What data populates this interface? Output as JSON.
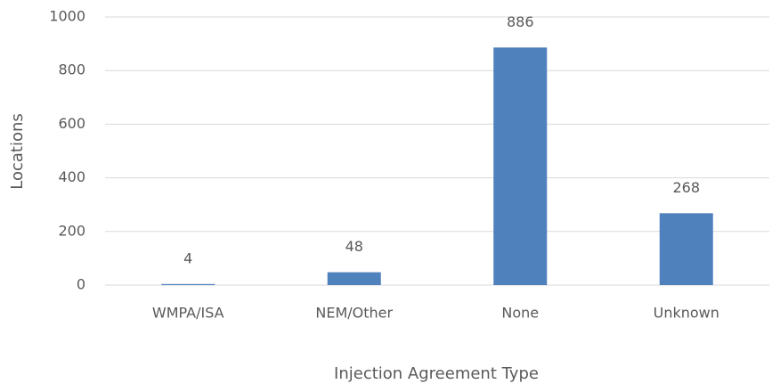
{
  "chart_data": {
    "type": "bar",
    "x_label": "Injection Agreement Type",
    "y_label": "Locations",
    "categories": [
      "WMPA/ISA",
      "NEM/Other",
      "None",
      "Unknown"
    ],
    "values": [
      4,
      48,
      886,
      268
    ],
    "color": "#4f81bd",
    "ylim": [
      0,
      1000
    ],
    "yticks": [
      0,
      200,
      400,
      600,
      800,
      1000
    ],
    "grid": true
  }
}
